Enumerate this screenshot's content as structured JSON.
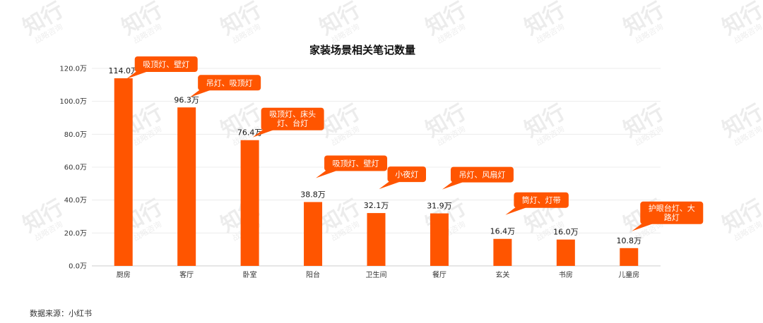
{
  "chart_data": {
    "type": "bar",
    "title": "家装场景相关笔记数量",
    "categories": [
      "厨房",
      "客厅",
      "卧室",
      "阳台",
      "卫生间",
      "餐厅",
      "玄关",
      "书房",
      "儿童房"
    ],
    "values": [
      114.0,
      96.3,
      76.4,
      38.8,
      32.1,
      31.9,
      16.4,
      16.0,
      10.8
    ],
    "value_labels": [
      "114.0万",
      "96.3万",
      "76.4万",
      "38.8万",
      "32.1万",
      "31.9万",
      "16.4万",
      "16.0万",
      "10.8万"
    ],
    "annotations": [
      [
        "吸顶灯、壁灯"
      ],
      [
        "吊灯、吸顶灯"
      ],
      [
        "吸顶灯、床头",
        "灯、台灯"
      ],
      [
        "吸顶灯、壁灯"
      ],
      [
        "小夜灯"
      ],
      [
        "吊灯、风扇灯"
      ],
      [
        "筒灯、灯带"
      ],
      [],
      [
        "护眼台灯、大",
        "路灯"
      ]
    ],
    "yticks": [
      "0.0万",
      "20.0万",
      "40.0万",
      "60.0万",
      "80.0万",
      "100.0万",
      "120.0万"
    ],
    "ylim": [
      0,
      120
    ],
    "xlabel": "",
    "ylabel": "",
    "grid": true,
    "bar_color": "#FF5500"
  },
  "watermark": {
    "main": "知行",
    "sub": "战略咨询"
  },
  "source": "数据来源：小红书"
}
